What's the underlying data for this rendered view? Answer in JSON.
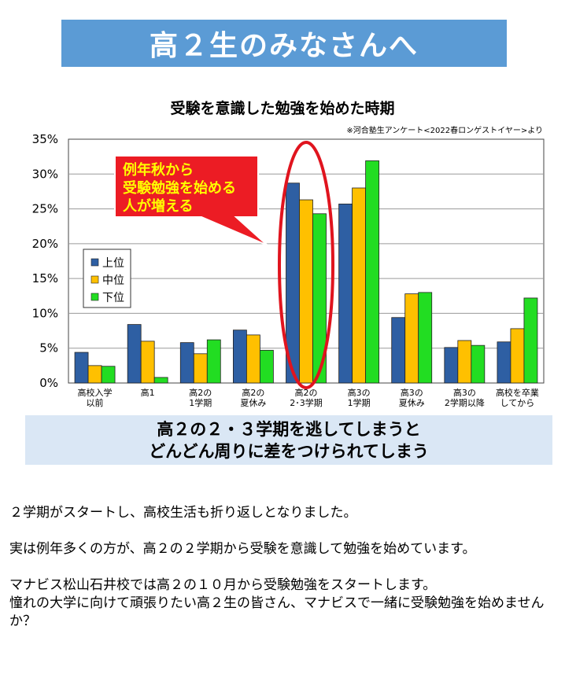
{
  "banner": {
    "title": "高２生のみなさんへ"
  },
  "chart_data": {
    "type": "bar",
    "title": "受験を意識した勉強を始めた時期",
    "source": "※河合塾生アンケート<2022春ロンゲストイヤー>より",
    "categories": [
      [
        "高校入学",
        "以前"
      ],
      [
        "高1"
      ],
      [
        "高2の",
        "1学期"
      ],
      [
        "高2の",
        "夏休み"
      ],
      [
        "高2の",
        "2･3学期"
      ],
      [
        "高3の",
        "1学期"
      ],
      [
        "高3の",
        "夏休み"
      ],
      [
        "高3の",
        "2学期以降"
      ],
      [
        "高校を卒業",
        "してから"
      ]
    ],
    "series": [
      {
        "name": "上位",
        "color": "#2e5fa3",
        "values": [
          4.4,
          8.4,
          5.8,
          7.6,
          28.7,
          25.7,
          9.4,
          5.1,
          5.9
        ]
      },
      {
        "name": "中位",
        "color": "#ffc000",
        "values": [
          2.5,
          6.0,
          4.2,
          6.9,
          26.3,
          28.0,
          12.8,
          6.1,
          7.8
        ]
      },
      {
        "name": "下位",
        "color": "#22dd22",
        "values": [
          2.4,
          0.8,
          6.2,
          4.7,
          24.3,
          31.9,
          13.0,
          5.4,
          12.2
        ]
      }
    ],
    "yticks": [
      "0%",
      "5%",
      "10%",
      "15%",
      "20%",
      "25%",
      "30%",
      "35%"
    ],
    "ylim": [
      0,
      35
    ],
    "grid": true,
    "legend": "left",
    "callout": [
      "例年秋から",
      "受験勉強を始める",
      "人が増える"
    ],
    "highlight_category": 4
  },
  "summary": {
    "line1": "高２の２・３学期を逃してしまうと",
    "line2": "どんどん周りに差をつけられてしまう"
  },
  "body": {
    "p1": "２学期がスタートし、高校生活も折り返しとなりました。",
    "p2": "実は例年多くの方が、高２の２学期から受験を意識して勉強を始めています。",
    "p3_line1": "マナビス松山石井校では高２の１０月から受験勉強をスタートします。",
    "p3_line2": "憧れの大学に向けて頑張りたい高２生の皆さん、マナビスで一緒に受験勉強を始めませんか？"
  }
}
